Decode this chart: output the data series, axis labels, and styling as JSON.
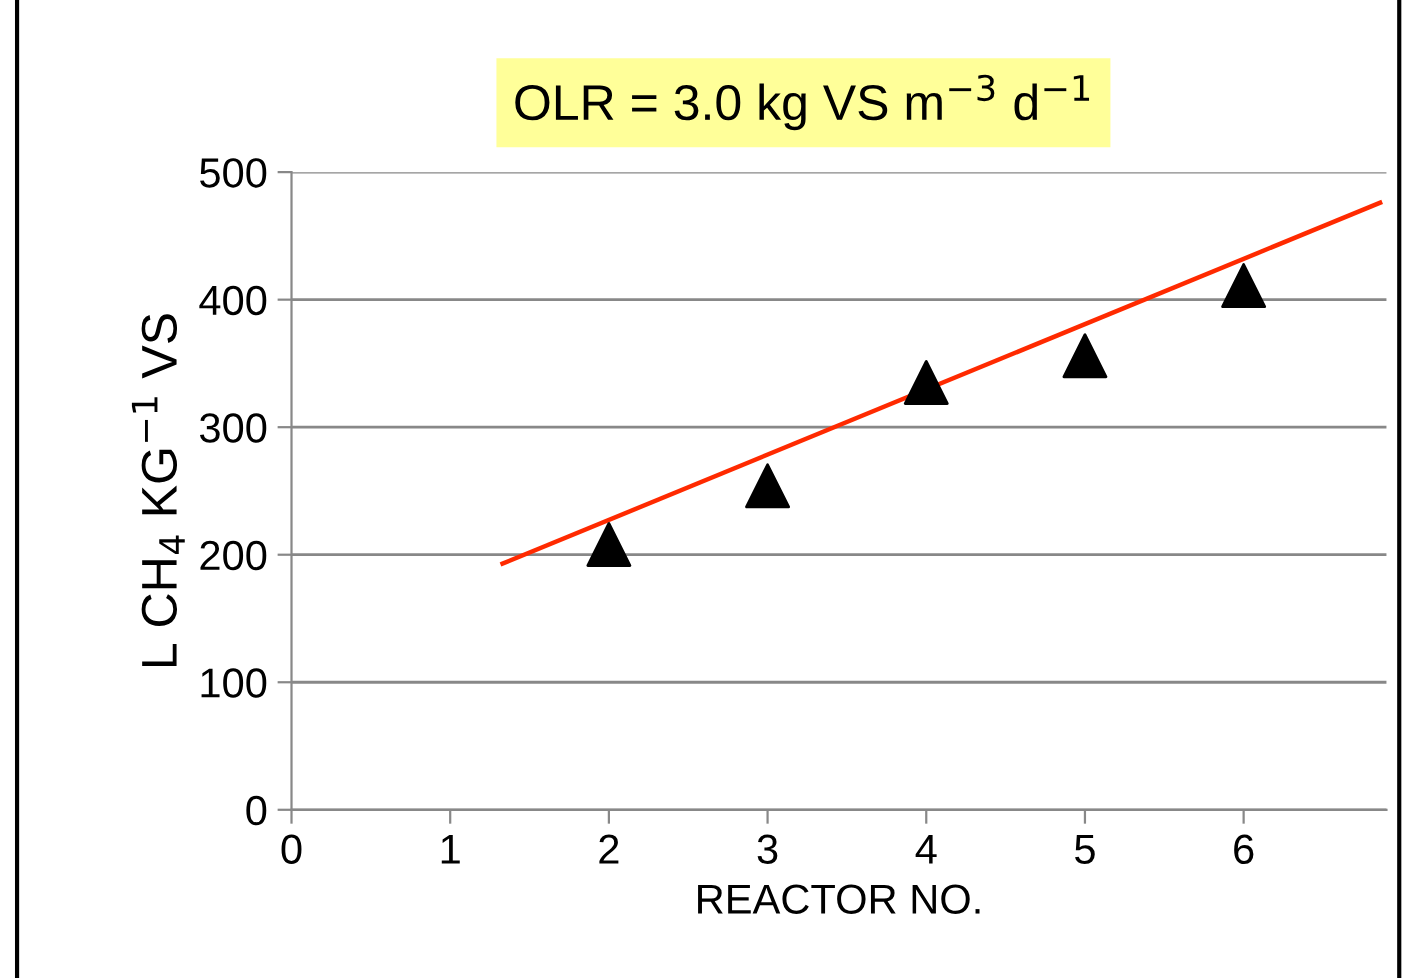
{
  "chart_data": {
    "type": "scatter",
    "title": "OLR = 3.0 kg VS m$^{−3}$ d$^{−1}$",
    "xlabel": "REACTOR NO.",
    "ylabel": "L CH$_{4}$ KG$^{−1}$ VS",
    "xlim": [
      0,
      6.9
    ],
    "xticks": [
      0,
      1,
      2,
      3,
      4,
      5,
      6
    ],
    "ylim": [
      0,
      500
    ],
    "yticks": [
      0,
      100,
      200,
      300,
      400,
      500
    ],
    "grid": "y",
    "series": [
      {
        "marker": "triangle",
        "color": "#000000",
        "x": [
          2,
          3,
          4,
          5,
          6
        ],
        "values": [
          208,
          254,
          335,
          356,
          411
        ]
      },
      {
        "type": "line",
        "marker": "none",
        "color": "#ff2a00",
        "line_style": "solid",
        "x": [
          1.33,
          6.86
        ],
        "values": [
          193,
          476
        ]
      }
    ]
  }
}
